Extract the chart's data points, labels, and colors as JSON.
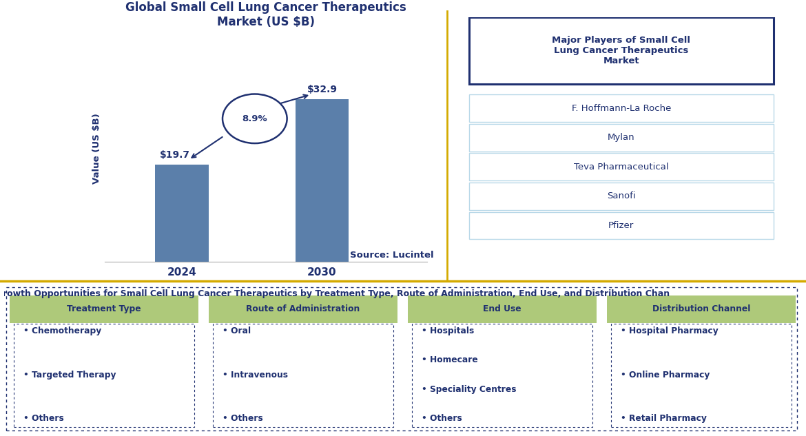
{
  "title": "Global Small Cell Lung Cancer Therapeutics\nMarket (US $B)",
  "bar_values": [
    19.7,
    32.9
  ],
  "bar_labels": [
    "2024",
    "2030"
  ],
  "bar_color": "#5b7faa",
  "bar_value_labels": [
    "$19.7",
    "$32.9"
  ],
  "cagr_label": "8.9%",
  "ylabel": "Value (US $B)",
  "source_text": "Source: Lucintel",
  "title_color": "#1f3070",
  "major_players_title": "Major Players of Small Cell\nLung Cancer Therapeutics\nMarket",
  "major_players": [
    "F. Hoffmann-La Roche",
    "Mylan",
    "Teva Pharmaceutical",
    "Sanofi",
    "Pfizer"
  ],
  "bottom_title": "rowth Opportunities for Small Cell Lung Cancer Therapeutics by Treatment Type, Route of Administration, End Use, and Distribution Chan",
  "columns": [
    "Treatment Type",
    "Route of Administration",
    "End Use",
    "Distribution Channel"
  ],
  "column_items": [
    [
      "Chemotherapy",
      "Targeted Therapy",
      "Others"
    ],
    [
      "Oral",
      "Intravenous",
      "Others"
    ],
    [
      "Hospitals",
      "Homecare",
      "Speciality Centres",
      "Others"
    ],
    [
      "Hospital Pharmacy",
      "Online Pharmacy",
      "Retail Pharmacy"
    ]
  ],
  "separator_color": "#d4aa00",
  "header_bg_color": "#aec97a",
  "header_text_color": "#1f3070",
  "item_text_color": "#1f3070",
  "players_box_border": "#1f3070",
  "players_item_border": "#b8d8e8",
  "players_item_bg": "#ffffff",
  "ellipse_border_color": "#1f3070",
  "arrow_color": "#1f3070",
  "bottom_border_color": "#1f3070"
}
